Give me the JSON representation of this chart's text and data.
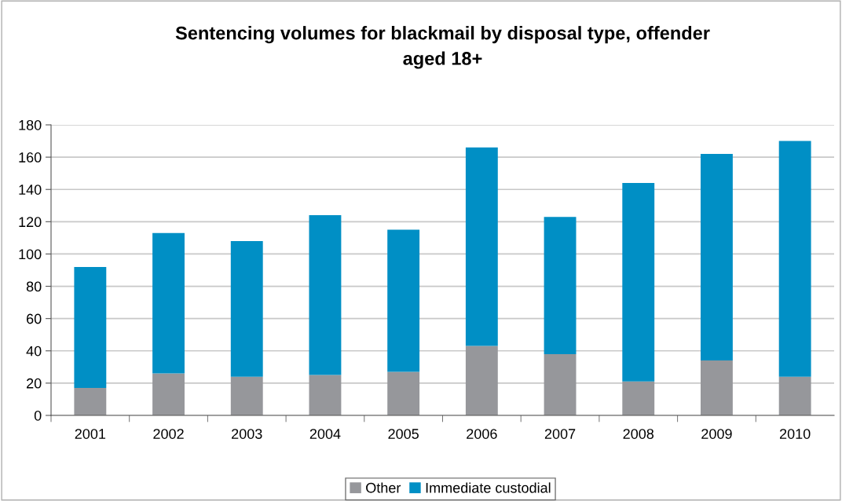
{
  "chart_data": {
    "type": "bar",
    "title": "Sentencing volumes for blackmail by disposal type, offender\naged 18+",
    "categories": [
      "2001",
      "2002",
      "2003",
      "2004",
      "2005",
      "2006",
      "2007",
      "2008",
      "2009",
      "2010"
    ],
    "stacked": true,
    "series": [
      {
        "name": "Other",
        "color": "#96979b",
        "values": [
          17,
          26,
          24,
          25,
          27,
          43,
          38,
          21,
          34,
          24
        ]
      },
      {
        "name": "Immediate custodial",
        "color": "#008fc5",
        "values": [
          75,
          87,
          84,
          99,
          88,
          123,
          85,
          123,
          128,
          146
        ]
      }
    ],
    "ylim": [
      0,
      180
    ],
    "yticks": [
      0,
      20,
      40,
      60,
      80,
      100,
      120,
      140,
      160,
      180
    ],
    "grid": "y",
    "legend": "bottom"
  }
}
